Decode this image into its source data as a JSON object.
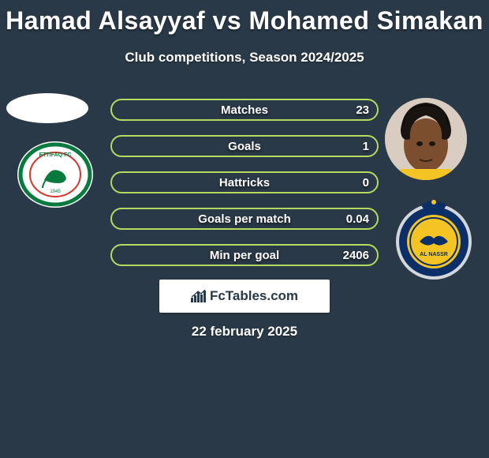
{
  "title": "Hamad Alsayyaf vs Mohamed Simakan",
  "subtitle": "Club competitions, Season 2024/2025",
  "date": "22 february 2025",
  "brand": "FcTables.com",
  "background_color": "#2a3947",
  "bar_border_color": "#b7d861",
  "text_color": "#ffffff",
  "stats": [
    {
      "label": "Matches",
      "value_right": "23",
      "fill_pct": 0
    },
    {
      "label": "Goals",
      "value_right": "1",
      "fill_pct": 0
    },
    {
      "label": "Hattricks",
      "value_right": "0",
      "fill_pct": 0
    },
    {
      "label": "Goals per match",
      "value_right": "0.04",
      "fill_pct": 0
    },
    {
      "label": "Min per goal",
      "value_right": "2406",
      "fill_pct": 0
    }
  ],
  "left_club": {
    "name": "Ettifaq FC",
    "ring_color": "#087a3e",
    "inner_bg": "#ffffff",
    "accent": "#d7342b"
  },
  "right_club": {
    "name": "Al Nassr",
    "ring_color": "#0b2f66",
    "inner_color": "#f4c324"
  },
  "right_player_skin": "#7a4e2e"
}
